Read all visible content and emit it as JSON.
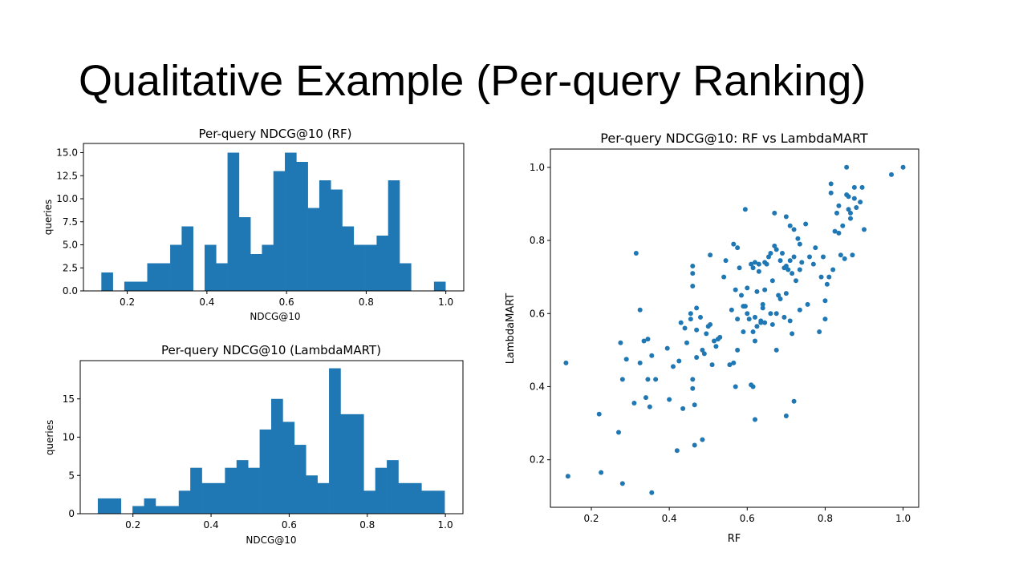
{
  "slide": {
    "title": "Qualitative Example (Per-query Ranking)"
  },
  "chart_data": [
    {
      "id": "hist_rf",
      "type": "bar",
      "title": "Per-query NDCG@10 (RF)",
      "xlabel": "NDCG@10",
      "ylabel": "queries",
      "bin_start": 0.135,
      "bin_width": 0.0288,
      "values": [
        2,
        0,
        1,
        1,
        3,
        3,
        5,
        7,
        0,
        5,
        3,
        15,
        8,
        4,
        5,
        13,
        15,
        14,
        9,
        12,
        11,
        7,
        5,
        5,
        6,
        12,
        3,
        0,
        0,
        1
      ],
      "xlim": [
        0.09,
        1.045
      ],
      "ylim": [
        0,
        16
      ],
      "xticks": [
        0.2,
        0.4,
        0.6,
        0.8,
        1.0
      ],
      "xtick_labels": [
        "0.2",
        "0.4",
        "0.6",
        "0.8",
        "1.0"
      ],
      "yticks": [
        0,
        2.5,
        5,
        7.5,
        10,
        12.5,
        15
      ],
      "ytick_labels": [
        "0.0",
        "2.5",
        "5.0",
        "7.5",
        "10.0",
        "12.5",
        "15.0"
      ]
    },
    {
      "id": "hist_lm",
      "type": "bar",
      "title": "Per-query NDCG@10 (LambdaMART)",
      "xlabel": "NDCG@10",
      "ylabel": "queries",
      "bin_start": 0.11,
      "bin_width": 0.0296,
      "values": [
        2,
        2,
        0,
        1,
        2,
        1,
        1,
        3,
        6,
        4,
        4,
        6,
        7,
        6,
        11,
        15,
        12,
        9,
        5,
        4,
        19,
        13,
        13,
        3,
        6,
        7,
        4,
        4,
        3,
        3
      ],
      "xlim": [
        0.065,
        1.045
      ],
      "ylim": [
        0,
        20
      ],
      "xticks": [
        0.2,
        0.4,
        0.6,
        0.8,
        1.0
      ],
      "xtick_labels": [
        "0.2",
        "0.4",
        "0.6",
        "0.8",
        "1.0"
      ],
      "yticks": [
        0,
        5,
        10,
        15
      ],
      "ytick_labels": [
        "0",
        "5",
        "10",
        "15"
      ]
    },
    {
      "id": "scatter",
      "type": "scatter",
      "title": "Per-query NDCG@10: RF vs LambdaMART",
      "xlabel": "RF",
      "ylabel": "LambdaMART",
      "xlim": [
        0.095,
        1.04
      ],
      "ylim": [
        0.07,
        1.05
      ],
      "xticks": [
        0.2,
        0.4,
        0.6,
        0.8,
        1.0
      ],
      "xtick_labels": [
        "0.2",
        "0.4",
        "0.6",
        "0.8",
        "1.0"
      ],
      "yticks": [
        0.2,
        0.4,
        0.6,
        0.8,
        1.0
      ],
      "ytick_labels": [
        "0.2",
        "0.4",
        "0.6",
        "0.8",
        "1.0"
      ],
      "points": [
        [
          0.135,
          0.465
        ],
        [
          0.14,
          0.155
        ],
        [
          0.22,
          0.325
        ],
        [
          0.225,
          0.165
        ],
        [
          0.27,
          0.275
        ],
        [
          0.275,
          0.52
        ],
        [
          0.28,
          0.42
        ],
        [
          0.28,
          0.135
        ],
        [
          0.29,
          0.475
        ],
        [
          0.31,
          0.355
        ],
        [
          0.315,
          0.765
        ],
        [
          0.325,
          0.61
        ],
        [
          0.325,
          0.465
        ],
        [
          0.335,
          0.525
        ],
        [
          0.34,
          0.37
        ],
        [
          0.345,
          0.53
        ],
        [
          0.345,
          0.42
        ],
        [
          0.35,
          0.345
        ],
        [
          0.355,
          0.485
        ],
        [
          0.355,
          0.11
        ],
        [
          0.365,
          0.42
        ],
        [
          0.395,
          0.505
        ],
        [
          0.4,
          0.365
        ],
        [
          0.41,
          0.455
        ],
        [
          0.42,
          0.225
        ],
        [
          0.425,
          0.47
        ],
        [
          0.43,
          0.575
        ],
        [
          0.435,
          0.34
        ],
        [
          0.44,
          0.56
        ],
        [
          0.445,
          0.52
        ],
        [
          0.455,
          0.585
        ],
        [
          0.455,
          0.6
        ],
        [
          0.46,
          0.675
        ],
        [
          0.46,
          0.71
        ],
        [
          0.46,
          0.73
        ],
        [
          0.46,
          0.42
        ],
        [
          0.46,
          0.395
        ],
        [
          0.465,
          0.35
        ],
        [
          0.465,
          0.24
        ],
        [
          0.47,
          0.615
        ],
        [
          0.47,
          0.555
        ],
        [
          0.47,
          0.48
        ],
        [
          0.48,
          0.59
        ],
        [
          0.485,
          0.5
        ],
        [
          0.485,
          0.255
        ],
        [
          0.49,
          0.49
        ],
        [
          0.495,
          0.545
        ],
        [
          0.5,
          0.565
        ],
        [
          0.505,
          0.57
        ],
        [
          0.505,
          0.76
        ],
        [
          0.51,
          0.46
        ],
        [
          0.515,
          0.525
        ],
        [
          0.52,
          0.51
        ],
        [
          0.525,
          0.53
        ],
        [
          0.53,
          0.535
        ],
        [
          0.54,
          0.7
        ],
        [
          0.545,
          0.745
        ],
        [
          0.555,
          0.46
        ],
        [
          0.56,
          0.61
        ],
        [
          0.565,
          0.79
        ],
        [
          0.565,
          0.465
        ],
        [
          0.57,
          0.665
        ],
        [
          0.57,
          0.4
        ],
        [
          0.575,
          0.78
        ],
        [
          0.575,
          0.585
        ],
        [
          0.575,
          0.5
        ],
        [
          0.58,
          0.725
        ],
        [
          0.585,
          0.65
        ],
        [
          0.59,
          0.62
        ],
        [
          0.59,
          0.55
        ],
        [
          0.595,
          0.885
        ],
        [
          0.595,
          0.62
        ],
        [
          0.6,
          0.67
        ],
        [
          0.6,
          0.6
        ],
        [
          0.605,
          0.585
        ],
        [
          0.61,
          0.735
        ],
        [
          0.61,
          0.405
        ],
        [
          0.615,
          0.725
        ],
        [
          0.615,
          0.55
        ],
        [
          0.615,
          0.4
        ],
        [
          0.62,
          0.74
        ],
        [
          0.62,
          0.59
        ],
        [
          0.62,
          0.525
        ],
        [
          0.62,
          0.31
        ],
        [
          0.625,
          0.66
        ],
        [
          0.625,
          0.565
        ],
        [
          0.63,
          0.735
        ],
        [
          0.63,
          0.715
        ],
        [
          0.635,
          0.58
        ],
        [
          0.635,
          0.575
        ],
        [
          0.64,
          0.615
        ],
        [
          0.64,
          0.625
        ],
        [
          0.645,
          0.74
        ],
        [
          0.645,
          0.665
        ],
        [
          0.645,
          0.575
        ],
        [
          0.65,
          0.735
        ],
        [
          0.655,
          0.755
        ],
        [
          0.66,
          0.765
        ],
        [
          0.66,
          0.6
        ],
        [
          0.665,
          0.69
        ],
        [
          0.665,
          0.57
        ],
        [
          0.67,
          0.875
        ],
        [
          0.67,
          0.785
        ],
        [
          0.675,
          0.775
        ],
        [
          0.675,
          0.6
        ],
        [
          0.675,
          0.5
        ],
        [
          0.68,
          0.65
        ],
        [
          0.685,
          0.745
        ],
        [
          0.685,
          0.64
        ],
        [
          0.69,
          0.765
        ],
        [
          0.695,
          0.725
        ],
        [
          0.695,
          0.59
        ],
        [
          0.7,
          0.865
        ],
        [
          0.7,
          0.73
        ],
        [
          0.7,
          0.655
        ],
        [
          0.7,
          0.32
        ],
        [
          0.705,
          0.72
        ],
        [
          0.71,
          0.84
        ],
        [
          0.71,
          0.745
        ],
        [
          0.71,
          0.58
        ],
        [
          0.715,
          0.71
        ],
        [
          0.715,
          0.545
        ],
        [
          0.72,
          0.83
        ],
        [
          0.72,
          0.755
        ],
        [
          0.72,
          0.36
        ],
        [
          0.725,
          0.69
        ],
        [
          0.73,
          0.805
        ],
        [
          0.735,
          0.79
        ],
        [
          0.735,
          0.72
        ],
        [
          0.735,
          0.61
        ],
        [
          0.74,
          0.74
        ],
        [
          0.75,
          0.845
        ],
        [
          0.755,
          0.625
        ],
        [
          0.76,
          0.755
        ],
        [
          0.77,
          0.735
        ],
        [
          0.775,
          0.78
        ],
        [
          0.785,
          0.55
        ],
        [
          0.79,
          0.7
        ],
        [
          0.795,
          0.755
        ],
        [
          0.8,
          0.635
        ],
        [
          0.8,
          0.585
        ],
        [
          0.805,
          0.68
        ],
        [
          0.81,
          0.7
        ],
        [
          0.815,
          0.93
        ],
        [
          0.815,
          0.955
        ],
        [
          0.82,
          0.72
        ],
        [
          0.825,
          0.825
        ],
        [
          0.83,
          0.875
        ],
        [
          0.835,
          0.82
        ],
        [
          0.835,
          0.895
        ],
        [
          0.84,
          0.76
        ],
        [
          0.845,
          0.84
        ],
        [
          0.85,
          0.75
        ],
        [
          0.855,
          1.0
        ],
        [
          0.855,
          0.925
        ],
        [
          0.86,
          0.885
        ],
        [
          0.86,
          0.92
        ],
        [
          0.865,
          0.875
        ],
        [
          0.865,
          0.86
        ],
        [
          0.87,
          0.76
        ],
        [
          0.875,
          0.945
        ],
        [
          0.875,
          0.915
        ],
        [
          0.88,
          0.89
        ],
        [
          0.89,
          0.905
        ],
        [
          0.895,
          0.945
        ],
        [
          0.9,
          0.83
        ],
        [
          0.97,
          0.98
        ],
        [
          1.0,
          1.0
        ]
      ]
    }
  ]
}
